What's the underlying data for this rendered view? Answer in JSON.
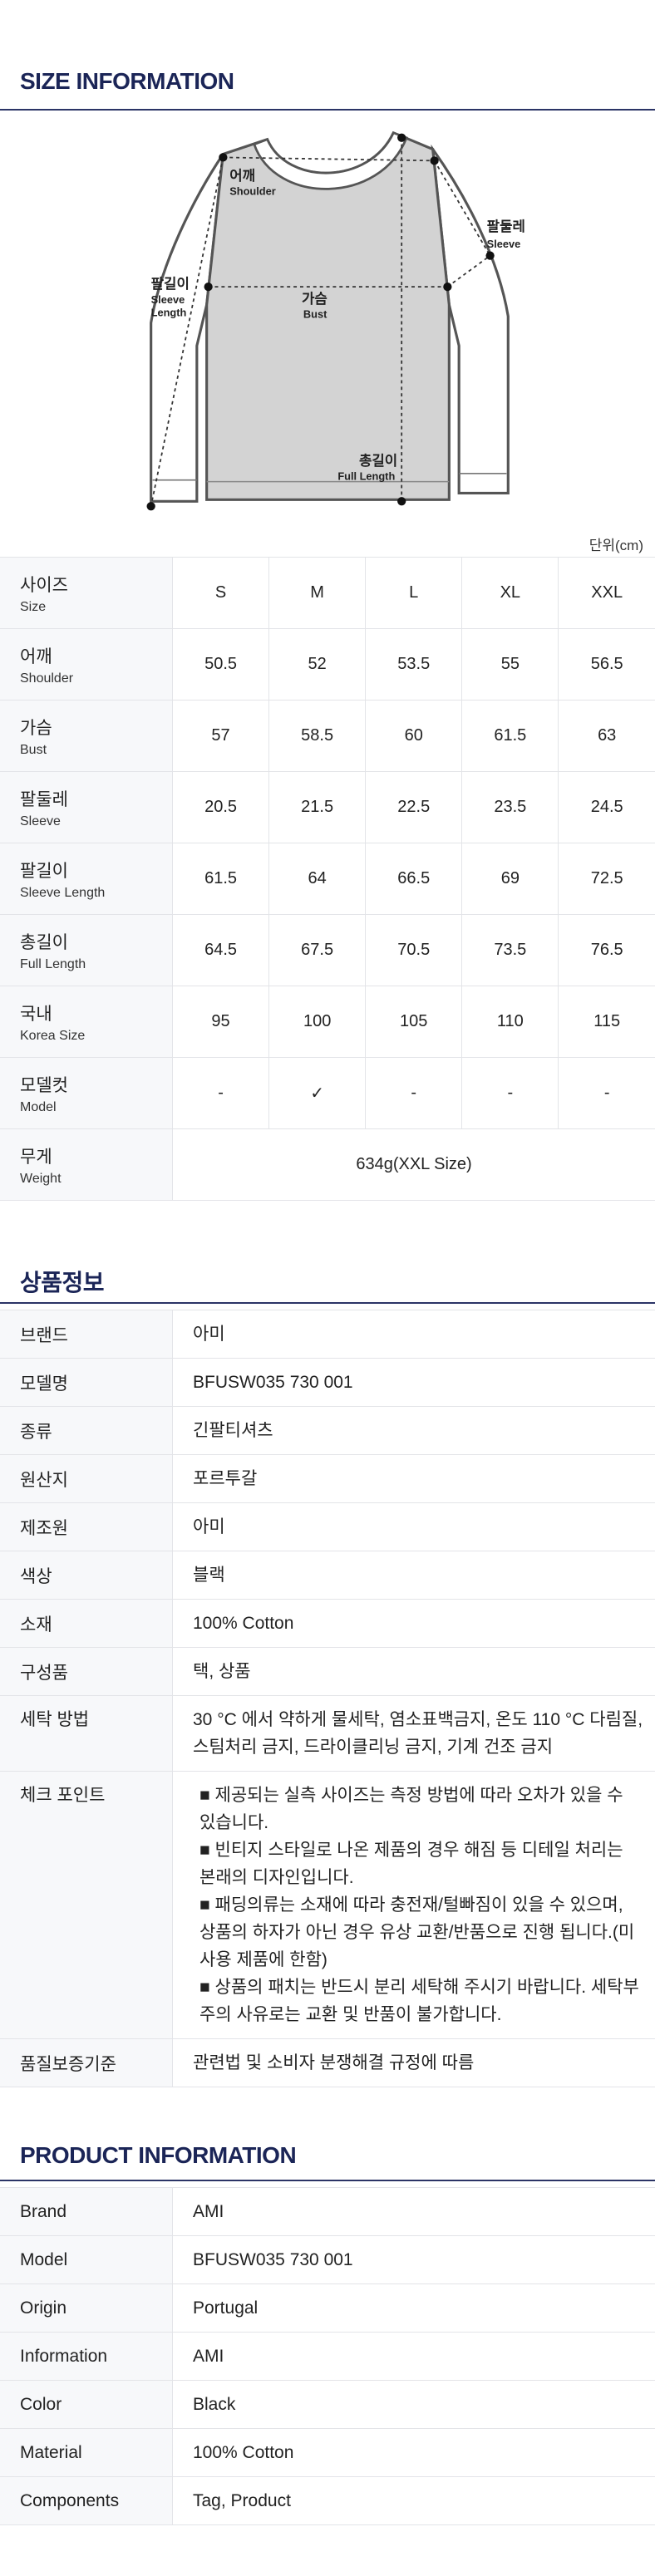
{
  "size_info": {
    "title": "SIZE INFORMATION",
    "diagram_labels": [
      {
        "ko": "어깨",
        "en": "Shoulder"
      },
      {
        "ko": "팔둘레",
        "en": "Sleeve"
      },
      {
        "ko": "팔길이",
        "en": [
          "Sleeve",
          "Length"
        ]
      },
      {
        "ko": "가슴",
        "en": "Bust"
      },
      {
        "ko": "총길이",
        "en": "Full Length"
      }
    ],
    "unit": "단위(cm)",
    "rows": [
      {
        "ko": "사이즈",
        "en": "Size",
        "values": [
          "S",
          "M",
          "L",
          "XL",
          "XXL"
        ]
      },
      {
        "ko": "어깨",
        "en": "Shoulder",
        "values": [
          "50.5",
          "52",
          "53.5",
          "55",
          "56.5"
        ]
      },
      {
        "ko": "가슴",
        "en": "Bust",
        "values": [
          "57",
          "58.5",
          "60",
          "61.5",
          "63"
        ]
      },
      {
        "ko": "팔둘레",
        "en": "Sleeve",
        "values": [
          "20.5",
          "21.5",
          "22.5",
          "23.5",
          "24.5"
        ]
      },
      {
        "ko": "팔길이",
        "en": "Sleeve Length",
        "values": [
          "61.5",
          "64",
          "66.5",
          "69",
          "72.5"
        ]
      },
      {
        "ko": "총길이",
        "en": "Full Length",
        "values": [
          "64.5",
          "67.5",
          "70.5",
          "73.5",
          "76.5"
        ]
      },
      {
        "ko": "국내",
        "en": "Korea Size",
        "values": [
          "95",
          "100",
          "105",
          "110",
          "115"
        ]
      },
      {
        "ko": "모델컷",
        "en": "Model",
        "values": [
          "-",
          "✓",
          "-",
          "-",
          "-"
        ]
      },
      {
        "ko": "무게",
        "en": "Weight",
        "value": "634g(XXL Size)"
      }
    ]
  },
  "product_info_ko": {
    "title": "상품정보",
    "rows": [
      {
        "label": "브랜드",
        "value": "아미"
      },
      {
        "label": "모델명",
        "value": "BFUSW035 730 001"
      },
      {
        "label": "종류",
        "value": "긴팔티셔츠"
      },
      {
        "label": "원산지",
        "value": "포르투갈"
      },
      {
        "label": "제조원",
        "value": "아미"
      },
      {
        "label": "색상",
        "value": "블랙"
      },
      {
        "label": "소재",
        "value": "100% Cotton"
      },
      {
        "label": "구성품",
        "value": "택, 상품"
      },
      {
        "label": "세탁 방법",
        "value": "30 °C 에서 약하게 물세탁, 염소표백금지, 온도 110 °C 다림질, 스팀처리 금지, 드라이클리닝 금지, 기계 건조 금지"
      },
      {
        "label": "체크 포인트",
        "bullets": [
          "■ 제공되는 실측 사이즈는 측정 방법에 따라 오차가 있을 수 있습니다.",
          "■ 빈티지 스타일로 나온 제품의 경우 해짐 등 디테일 처리는 본래의 디자인입니다.",
          "■ 패딩의류는 소재에 따라 충전재/털빠짐이 있을 수 있으며, 상품의 하자가 아닌 경우 유상 교환/반품으로 진행 됩니다.(미사용 제품에 한함)",
          "■ 상품의 패치는 반드시 분리 세탁해 주시기 바랍니다. 세탁부주의 사유로는 교환 및 반품이 불가합니다."
        ]
      },
      {
        "label": "품질보증기준",
        "value": "관련법 및 소비자 분쟁해결 규정에 따름"
      }
    ]
  },
  "product_info_en": {
    "title": "PRODUCT INFORMATION",
    "rows": [
      {
        "label": "Brand",
        "value": "AMI"
      },
      {
        "label": "Model",
        "value": "BFUSW035 730 001"
      },
      {
        "label": "Origin",
        "value": "Portugal"
      },
      {
        "label": "Information",
        "value": "AMI"
      },
      {
        "label": "Color",
        "value": "Black"
      },
      {
        "label": "Material",
        "value": "100% Cotton"
      },
      {
        "label": "Components",
        "value": "Tag, Product"
      }
    ]
  }
}
